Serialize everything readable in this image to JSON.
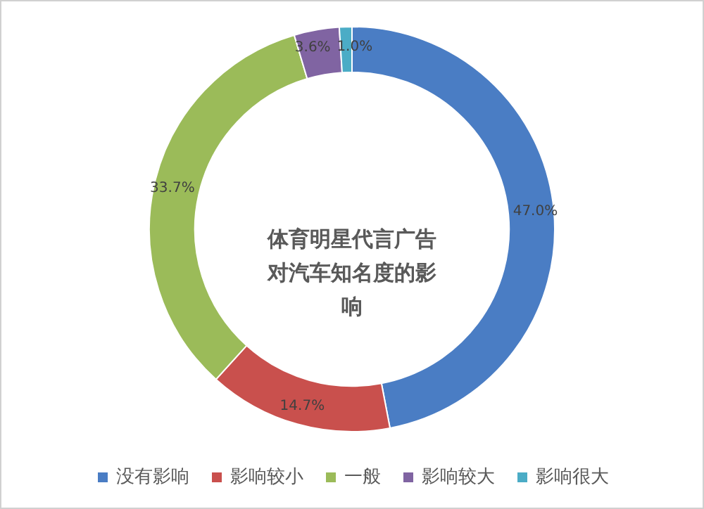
{
  "chart_data": {
    "type": "donut",
    "title": "体育明星代言广告对汽车知名度的影响",
    "categories": [
      "没有影响",
      "影响较小",
      "一般",
      "影响较大",
      "影响很大"
    ],
    "values": [
      47.0,
      14.7,
      33.7,
      3.6,
      1.0
    ],
    "value_labels": [
      "47.0%",
      "14.7%",
      "33.7%",
      "3.6%",
      "1.0%"
    ],
    "colors": [
      "#4a7dc4",
      "#c9504d",
      "#9bbb59",
      "#8064a2",
      "#4bacc6"
    ],
    "legend": "bottom"
  }
}
